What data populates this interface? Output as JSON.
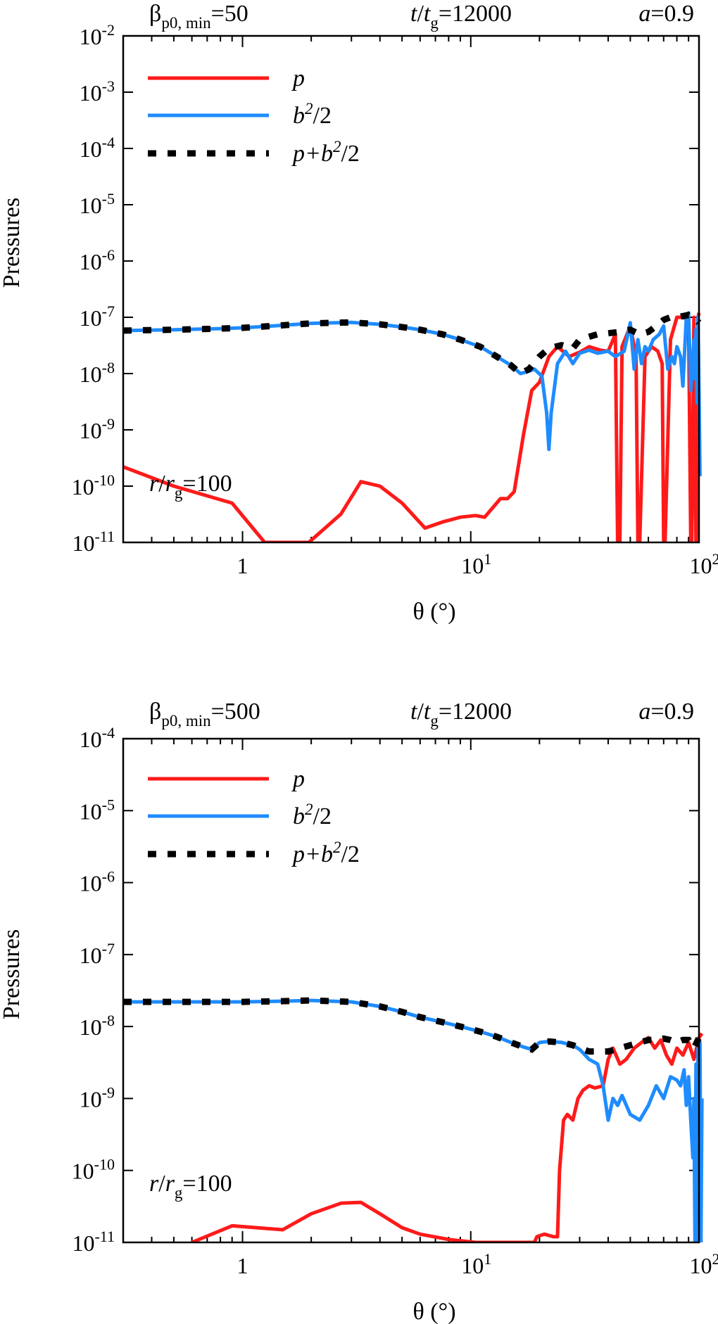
{
  "colors": {
    "p": "#ff1a1a",
    "b2": "#1e8cff",
    "total": "#000000",
    "axis": "#000000"
  },
  "chart_data": [
    {
      "type": "line",
      "xscale": "log",
      "yscale": "log",
      "xlim": [
        0.3,
        100
      ],
      "ylim_exp": [
        -11,
        -2
      ],
      "ylabel": "Pressures",
      "xlabel": "θ (°)",
      "x_ticks": [
        {
          "base": "1",
          "exp": ""
        },
        {
          "base": "10",
          "exp": "1"
        },
        {
          "base": "10",
          "exp": "2"
        }
      ],
      "y_tick_exponents": [
        -11,
        -10,
        -9,
        -8,
        -7,
        -6,
        -5,
        -4,
        -3,
        -2
      ],
      "y_tick_base": "10",
      "header": {
        "beta_symbol": "β",
        "beta_sub": "p0, min",
        "beta_value": "=50",
        "time_t": "t",
        "time_slash": "/",
        "time_tg": "t",
        "time_sub": "g",
        "time_value": "=12000",
        "spin_a": "a",
        "spin_value": "=0.9"
      },
      "radius_label": {
        "r": "r",
        "slash": "/",
        "rg": "r",
        "sub": "g",
        "value": "=100"
      },
      "legend": [
        {
          "key": "p",
          "label_main": "p",
          "label_sup": "",
          "label_tail": ""
        },
        {
          "key": "b2",
          "label_main": "b",
          "label_sup": "2",
          "label_tail": "/2"
        },
        {
          "key": "total",
          "label_main": "p+b",
          "label_sup": "2",
          "label_tail": "/2"
        }
      ],
      "series": [
        {
          "key": "p",
          "name": "p",
          "x": [
            0.3,
            0.5,
            0.9,
            1.25,
            1.95,
            2.1,
            2.7,
            3.3,
            4.0,
            5.0,
            6.3,
            7.5,
            9.0,
            10.5,
            11.5,
            13.5,
            14.5,
            15.5,
            17.0,
            18.5,
            20.0,
            22.0,
            24.0,
            27.0,
            30.0,
            33.0,
            37.0,
            40.0,
            43.0,
            44.0,
            45.0,
            46.0,
            50.0,
            53.0,
            54.0,
            55.0,
            58.0,
            62.0,
            66.0,
            69.0,
            70.0,
            71.0,
            75.0,
            80.0,
            85.0,
            90.0,
            92.0,
            93.0,
            95.0,
            97.0,
            98.0,
            99.0,
            100.0
          ],
          "y": [
            2.2e-10,
            1e-10,
            5e-11,
            1e-11,
            1e-11,
            1.3e-11,
            3.2e-11,
            1.2e-10,
            1e-10,
            5e-11,
            1.8e-11,
            2.3e-11,
            2.8e-11,
            3e-11,
            2.8e-11,
            6e-11,
            6e-11,
            8e-11,
            8e-10,
            5e-09,
            7e-09,
            2e-08,
            3e-08,
            2e-08,
            2.4e-08,
            3e-08,
            2.6e-08,
            2.5e-08,
            5e-08,
            1e-11,
            1e-11,
            3e-08,
            7e-08,
            2e-08,
            1e-11,
            1e-11,
            2e-08,
            3e-08,
            2.5e-08,
            1.5e-08,
            1e-11,
            1e-11,
            4e-08,
            1e-07,
            1e-07,
            9e-08,
            1e-11,
            1e-11,
            1e-07,
            1e-11,
            1e-11,
            1e-07,
            1.2e-07
          ]
        },
        {
          "key": "b2",
          "name": "b²/2",
          "x": [
            0.3,
            0.5,
            0.8,
            1.0,
            1.5,
            2.0,
            3.0,
            4.0,
            5.0,
            6.0,
            7.5,
            9.0,
            11.0,
            13.0,
            15.0,
            16.5,
            18.0,
            19.0,
            20.5,
            21.5,
            22.0,
            22.5,
            24.0,
            26.0,
            28.0,
            30.0,
            33.0,
            36.0,
            40.0,
            43.0,
            47.0,
            50.0,
            52.0,
            54.0,
            56.0,
            58.0,
            60.0,
            63.0,
            67.0,
            70.0,
            73.0,
            76.0,
            78.0,
            80.0,
            83.0,
            85.0,
            88.0,
            90.0,
            92.0,
            94.0,
            95.0,
            96.0,
            97.0,
            98.0,
            99.0,
            100.0,
            101.0
          ],
          "y": [
            5.8e-08,
            6e-08,
            6.3e-08,
            6.5e-08,
            7.2e-08,
            7.8e-08,
            8.1e-08,
            7.5e-08,
            6.7e-08,
            6e-08,
            5e-08,
            4e-08,
            3e-08,
            2e-08,
            1.4e-08,
            1e-08,
            1.1e-08,
            1.2e-08,
            9e-09,
            2e-09,
            4.5e-10,
            2e-09,
            1.5e-08,
            2.5e-08,
            1.5e-08,
            2.3e-08,
            2.6e-08,
            2.3e-08,
            2.5e-08,
            2e-08,
            2.5e-08,
            8e-08,
            1.2e-08,
            4e-08,
            1.5e-08,
            3e-08,
            2.5e-08,
            4e-08,
            5e-08,
            7e-08,
            1.2e-08,
            2e-08,
            1.5e-08,
            3e-08,
            2e-08,
            6e-09,
            1e-07,
            1.2e-07,
            5e-09,
            2e-08,
            4e-08,
            8e-09,
            6e-08,
            3e-09,
            1e-07,
            5e-09,
            1.5e-10
          ]
        },
        {
          "key": "total",
          "name": "p+b²/2",
          "x": [
            0.3,
            0.5,
            0.8,
            1.0,
            1.5,
            2.0,
            3.0,
            4.0,
            5.0,
            6.0,
            7.5,
            9.0,
            11.0,
            13.0,
            15.0,
            16.5,
            18.0,
            20.0,
            22.0,
            25.0,
            28.0,
            30.0,
            33.0,
            36.0,
            40.0,
            45.0,
            50.0,
            55.0,
            60.0,
            65.0,
            70.0,
            75.0,
            80.0,
            85.0,
            90.0,
            95.0,
            100.0
          ],
          "y": [
            5.8e-08,
            6e-08,
            6.3e-08,
            6.5e-08,
            7.2e-08,
            7.8e-08,
            8.1e-08,
            7.5e-08,
            6.7e-08,
            6e-08,
            5e-08,
            4e-08,
            3e-08,
            2e-08,
            1.4e-08,
            1e-08,
            1.2e-08,
            2e-08,
            2.8e-08,
            3.2e-08,
            2.8e-08,
            4e-08,
            4.5e-08,
            5e-08,
            5.2e-08,
            5.5e-08,
            6e-08,
            5e-08,
            5.5e-08,
            7e-08,
            9e-08,
            1e-07,
            1e-07,
            1.05e-07,
            1.1e-07,
            1e-07,
            8e-08
          ]
        }
      ]
    },
    {
      "type": "line",
      "xscale": "log",
      "yscale": "log",
      "xlim": [
        0.3,
        100
      ],
      "ylim_exp": [
        -11,
        -4
      ],
      "ylabel": "Pressures",
      "xlabel": "θ (°)",
      "x_ticks": [
        {
          "base": "1",
          "exp": ""
        },
        {
          "base": "10",
          "exp": "1"
        },
        {
          "base": "10",
          "exp": "2"
        }
      ],
      "y_tick_exponents": [
        -11,
        -10,
        -9,
        -8,
        -7,
        -6,
        -5,
        -4
      ],
      "y_tick_base": "10",
      "header": {
        "beta_symbol": "β",
        "beta_sub": "p0, min",
        "beta_value": "=500",
        "time_t": "t",
        "time_slash": "/",
        "time_tg": "t",
        "time_sub": "g",
        "time_value": "=12000",
        "spin_a": "a",
        "spin_value": "=0.9"
      },
      "radius_label": {
        "r": "r",
        "slash": "/",
        "rg": "r",
        "sub": "g",
        "value": "=100"
      },
      "legend": [
        {
          "key": "p",
          "label_main": "p",
          "label_sup": "",
          "label_tail": ""
        },
        {
          "key": "b2",
          "label_main": "b",
          "label_sup": "2",
          "label_tail": "/2"
        },
        {
          "key": "total",
          "label_main": "p+b",
          "label_sup": "2",
          "label_tail": "/2"
        }
      ],
      "series": [
        {
          "key": "p",
          "name": "p",
          "x": [
            0.6,
            0.9,
            1.5,
            2.0,
            2.7,
            3.3,
            4.0,
            5.0,
            6.0,
            8.0,
            10.5,
            19.0,
            19.5,
            21.0,
            23.0,
            24.0,
            24.5,
            25.5,
            26.5,
            28.0,
            29.5,
            31.0,
            33.0,
            35.0,
            38.0,
            40.0,
            42.0,
            45.0,
            48.0,
            52.0,
            56.0,
            60.0,
            64.0,
            68.0,
            72.0,
            76.0,
            80.0,
            85.0,
            90.0,
            95.0,
            100.0,
            103.0
          ],
          "y": [
            1e-11,
            1.7e-11,
            1.5e-11,
            2.5e-11,
            3.5e-11,
            3.6e-11,
            2.5e-11,
            1.6e-11,
            1.3e-11,
            1.1e-11,
            1e-11,
            1e-11,
            1.2e-11,
            1.3e-11,
            1.2e-11,
            1.2e-11,
            1e-10,
            5e-10,
            6e-10,
            5e-10,
            1e-09,
            1.3e-09,
            1.5e-09,
            1.4e-09,
            1.5e-09,
            3.5e-09,
            5e-09,
            3e-09,
            3.5e-09,
            5e-09,
            6e-09,
            7e-09,
            5e-09,
            6.5e-09,
            4e-09,
            3e-09,
            5e-09,
            4e-09,
            6e-09,
            3.5e-09,
            7e-09,
            8e-09
          ]
        },
        {
          "key": "b2",
          "name": "b²/2",
          "x": [
            0.3,
            0.5,
            0.8,
            1.0,
            1.5,
            2.0,
            3.0,
            4.0,
            5.0,
            6.0,
            7.5,
            9.0,
            11.0,
            13.0,
            15.0,
            17.0,
            18.5,
            20.0,
            22.0,
            25.0,
            28.0,
            30.0,
            33.0,
            36.0,
            38.0,
            40.0,
            42.0,
            44.0,
            46.0,
            50.0,
            55.0,
            60.0,
            65.0,
            70.0,
            75.0,
            80.0,
            83.0,
            86.0,
            88.0,
            90.0,
            92.0,
            94.0,
            95.0,
            96.0,
            97.0,
            98.0,
            99.0,
            100.0,
            101.0,
            102.0,
            103.0
          ],
          "y": [
            2.2e-08,
            2.2e-08,
            2.2e-08,
            2.2e-08,
            2.25e-08,
            2.3e-08,
            2.2e-08,
            1.9e-08,
            1.6e-08,
            1.35e-08,
            1.15e-08,
            1e-08,
            8.5e-09,
            7.2e-09,
            6e-09,
            5.2e-09,
            4.8e-09,
            6e-09,
            6.2e-09,
            6e-09,
            5.5e-09,
            4.8e-09,
            3.5e-09,
            3e-09,
            1.5e-09,
            5e-10,
            1e-09,
            8e-10,
            1.1e-09,
            6e-10,
            5e-10,
            8e-10,
            1.5e-09,
            1e-09,
            2e-09,
            1.8e-09,
            1.5e-09,
            2.5e-09,
            8e-10,
            2e-09,
            5e-10,
            1.5e-10,
            1e-09,
            1e-11,
            3e-09,
            1e-11,
            5e-09,
            1e-11,
            6e-09,
            1e-11,
            1e-09
          ]
        },
        {
          "key": "total",
          "name": "p+b²/2",
          "x": [
            0.3,
            0.5,
            0.8,
            1.0,
            1.5,
            2.0,
            3.0,
            4.0,
            5.0,
            6.0,
            7.5,
            9.0,
            11.0,
            13.0,
            15.0,
            17.0,
            18.5,
            20.0,
            22.0,
            25.0,
            28.0,
            30.0,
            33.0,
            36.0,
            40.0,
            45.0,
            50.0,
            55.0,
            60.0,
            65.0,
            70.0,
            75.0,
            80.0,
            85.0,
            90.0,
            95.0,
            100.0
          ],
          "y": [
            2.2e-08,
            2.2e-08,
            2.2e-08,
            2.2e-08,
            2.25e-08,
            2.3e-08,
            2.2e-08,
            1.9e-08,
            1.6e-08,
            1.35e-08,
            1.15e-08,
            1e-08,
            8.5e-09,
            7.2e-09,
            6e-09,
            5.2e-09,
            4.8e-09,
            6e-09,
            6.2e-09,
            6e-09,
            5.5e-09,
            5e-09,
            4.5e-09,
            4.5e-09,
            4.5e-09,
            5e-09,
            5.5e-09,
            6e-09,
            6.5e-09,
            6.5e-09,
            6.8e-09,
            6.5e-09,
            6e-09,
            6.5e-09,
            6.5e-09,
            5e-09,
            7e-09
          ]
        }
      ]
    }
  ]
}
